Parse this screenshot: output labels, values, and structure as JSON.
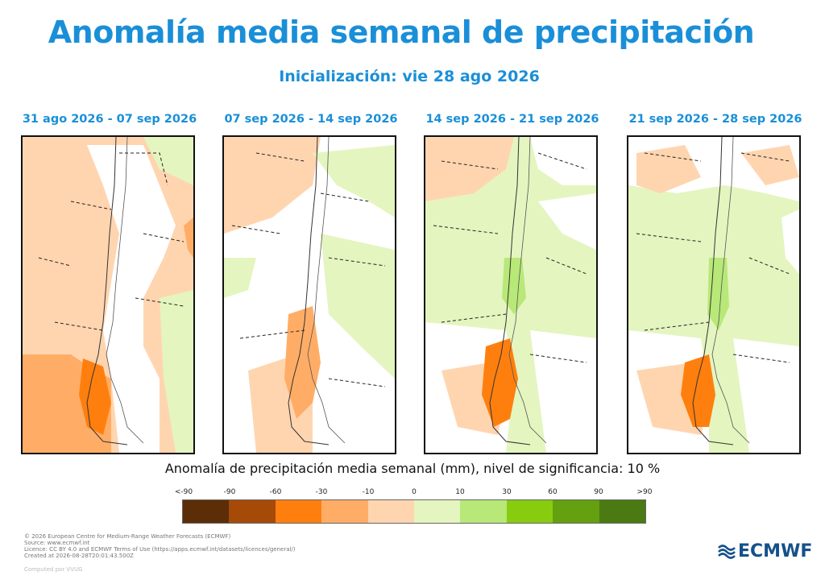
{
  "title": "Anomalía media semanal de precipitación",
  "subtitle": "Inicialización: vie 28 ago 2026",
  "panels": [
    {
      "title": "31 ago 2026 - 07 sep 2026"
    },
    {
      "title": "07 sep 2026 - 14 sep 2026"
    },
    {
      "title": "14 sep 2026 - 21 sep 2026"
    },
    {
      "title": "21 sep 2026 - 28 sep 2026"
    }
  ],
  "colorbar": {
    "title": "Anomalía de precipitación media semanal (mm), nivel de significancia: 10 %",
    "labels": [
      "<-90",
      "-90",
      "-60",
      "-30",
      "-10",
      "0",
      "10",
      "30",
      "60",
      "90",
      ">90"
    ],
    "colors": [
      "#5c2e08",
      "#a64a08",
      "#ff7f0e",
      "#ffad66",
      "#ffd5b0",
      "#e4f5c0",
      "#b8e878",
      "#88cc10",
      "#64a010",
      "#4b7a12"
    ]
  },
  "footer": {
    "lines": [
      "© 2026 European Centre for Medium-Range Weather Forecasts (ECMWF)",
      "Source: www.ecmwf.int",
      "Licence: CC BY 4.0 and ECMWF Terms of Use (https://apps.ecmwf.int/datasets/licences/general/)",
      "Created at 2026-08-28T20:01:43.500Z"
    ],
    "computed": "Computed por VVUG"
  },
  "logo": {
    "text": "ECMWF"
  }
}
